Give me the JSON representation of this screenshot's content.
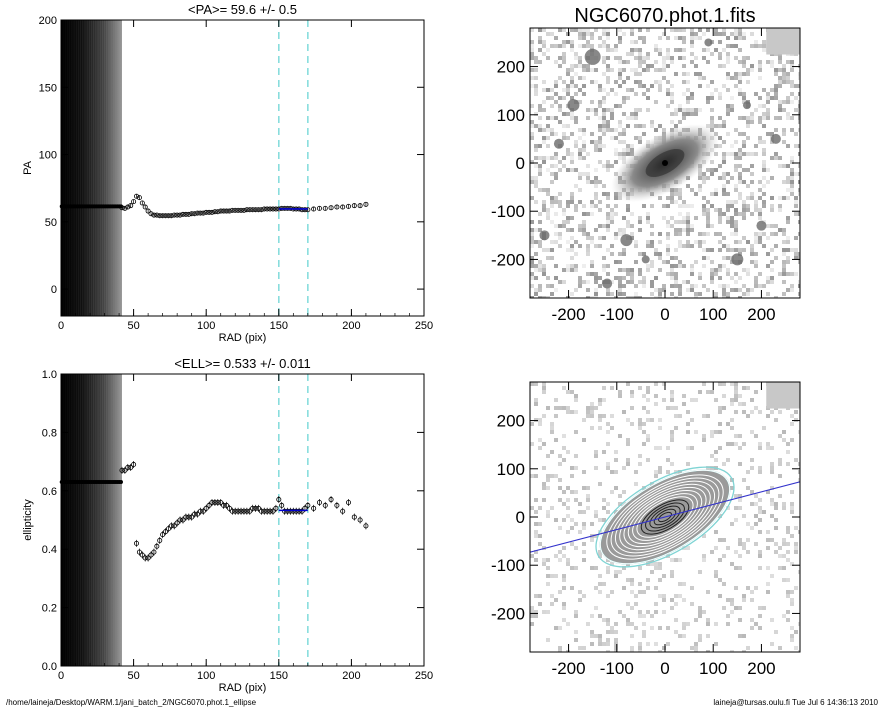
{
  "footer": {
    "left": "/home/laineja/Desktop/WARM.1/jani_batch_2/NGC6070.phot.1_ellipse",
    "right": "laineja@tursas.oulu.fi  Tue Jul  6 14:36:13 2010"
  },
  "chart_data": [
    {
      "type": "scatter",
      "title": "<PA>=  59.6 +/-    0.5",
      "xlabel": "RAD (pix)",
      "ylabel": "PA",
      "xlim": [
        0,
        250
      ],
      "ylim": [
        -20,
        200
      ],
      "xticks": [
        0,
        50,
        100,
        150,
        200,
        250
      ],
      "yticks": [
        0,
        50,
        100,
        150,
        200
      ],
      "shaded_x_range": [
        0,
        42
      ],
      "vlines": [
        150,
        170
      ],
      "vline_color": "#88dddd",
      "mean_line": {
        "x": [
          150,
          170
        ],
        "y": 59.6,
        "color": "#0000cc"
      },
      "inner_points": {
        "x_range": [
          0,
          42
        ],
        "y": 61.5
      },
      "series": [
        {
          "x": [
            42,
            44,
            46,
            48,
            50,
            52,
            54,
            56,
            58,
            60,
            62,
            64,
            66,
            68,
            70,
            72,
            74,
            76,
            78,
            80,
            82,
            84,
            86,
            88,
            90,
            92,
            94,
            96,
            98,
            100,
            102,
            104,
            106,
            108,
            110,
            112,
            114,
            116,
            118,
            120,
            122,
            124,
            126,
            128,
            130,
            132,
            134,
            136,
            138,
            140,
            142,
            144,
            146,
            148,
            150,
            152,
            154,
            156,
            158,
            160,
            162,
            164,
            166,
            168,
            170,
            174,
            178,
            182,
            186,
            190,
            194,
            198,
            202,
            206,
            210
          ],
          "y": [
            60.5,
            60,
            61,
            62,
            65,
            69,
            68,
            64,
            61,
            58,
            56,
            55,
            55,
            54.5,
            54.5,
            54.5,
            54.5,
            54.5,
            55,
            55,
            55,
            55.5,
            55.5,
            55.5,
            56,
            56,
            56.5,
            56.5,
            56.5,
            57,
            57,
            57,
            57.5,
            57.5,
            58,
            58,
            58,
            58,
            58.5,
            58.5,
            58.5,
            58.5,
            58.5,
            59,
            59,
            59,
            59,
            59,
            59,
            59.5,
            59.5,
            59.5,
            59.5,
            59.5,
            59.5,
            60,
            60,
            60,
            60,
            59.5,
            59.5,
            59.5,
            59,
            59,
            59,
            59.5,
            60,
            60,
            60.5,
            61,
            61,
            61.5,
            62,
            62,
            63
          ]
        }
      ]
    },
    {
      "type": "scatter",
      "title": "<ELL>= 0.533 +/-  0.011",
      "xlabel": "RAD (pix)",
      "ylabel": "ellipticity",
      "xlim": [
        0,
        250
      ],
      "ylim": [
        0,
        1
      ],
      "xticks": [
        0,
        50,
        100,
        150,
        200,
        250
      ],
      "yticks": [
        0.0,
        0.2,
        0.4,
        0.6,
        0.8,
        1.0
      ],
      "shaded_x_range": [
        0,
        42
      ],
      "vlines": [
        150,
        170
      ],
      "vline_color": "#88dddd",
      "mean_line": {
        "x": [
          150,
          170
        ],
        "y": 0.533,
        "color": "#0000cc"
      },
      "inner_points": {
        "x_range": [
          0,
          42
        ],
        "y": 0.63
      },
      "series": [
        {
          "x": [
            42,
            44,
            46,
            48,
            50,
            52,
            54,
            56,
            58,
            60,
            62,
            64,
            66,
            68,
            70,
            72,
            74,
            76,
            78,
            80,
            82,
            84,
            86,
            88,
            90,
            92,
            94,
            96,
            98,
            100,
            102,
            104,
            106,
            108,
            110,
            112,
            114,
            116,
            118,
            120,
            122,
            124,
            126,
            128,
            130,
            132,
            134,
            136,
            138,
            140,
            142,
            144,
            146,
            148,
            150,
            152,
            154,
            156,
            158,
            160,
            162,
            164,
            166,
            168,
            170,
            174,
            178,
            182,
            186,
            190,
            194,
            198,
            202,
            206,
            210
          ],
          "y": [
            0.67,
            0.67,
            0.68,
            0.68,
            0.69,
            0.42,
            0.39,
            0.38,
            0.37,
            0.37,
            0.38,
            0.39,
            0.41,
            0.43,
            0.45,
            0.46,
            0.47,
            0.48,
            0.48,
            0.49,
            0.5,
            0.5,
            0.51,
            0.51,
            0.51,
            0.52,
            0.52,
            0.53,
            0.53,
            0.54,
            0.55,
            0.56,
            0.56,
            0.56,
            0.56,
            0.55,
            0.55,
            0.54,
            0.53,
            0.53,
            0.53,
            0.53,
            0.53,
            0.53,
            0.53,
            0.54,
            0.54,
            0.54,
            0.53,
            0.53,
            0.53,
            0.53,
            0.53,
            0.54,
            0.57,
            0.55,
            0.53,
            0.53,
            0.53,
            0.53,
            0.53,
            0.53,
            0.53,
            0.54,
            0.55,
            0.54,
            0.56,
            0.55,
            0.57,
            0.55,
            0.53,
            0.56,
            0.51,
            0.5,
            0.48
          ]
        }
      ]
    },
    {
      "type": "heatmap",
      "title": "NGC6070.phot.1.fits",
      "xlim": [
        -280,
        280
      ],
      "ylim": [
        -280,
        280
      ],
      "xticks": [
        -200,
        -100,
        0,
        100,
        200
      ],
      "yticks": [
        -200,
        -100,
        0,
        100,
        200
      ],
      "galaxy": {
        "center": [
          0,
          0
        ],
        "pa_deg": 59.6,
        "ellipticity": 0.533
      }
    },
    {
      "type": "heatmap",
      "title": "",
      "xlim": [
        -280,
        280
      ],
      "ylim": [
        -280,
        280
      ],
      "xticks": [
        -200,
        -100,
        0,
        100,
        200
      ],
      "yticks": [
        -200,
        -100,
        0,
        100,
        200
      ],
      "contour_radii": [
        15,
        25,
        35,
        45,
        55,
        65,
        75,
        85,
        95,
        105,
        115,
        125,
        135,
        150
      ],
      "outer_contour_radii": [
        150,
        160
      ],
      "outer_contour_color": "#7fd4d4",
      "major_axis": {
        "pa_deg": 59.6,
        "color": "#3333cc"
      },
      "ellipticity": 0.533
    }
  ]
}
